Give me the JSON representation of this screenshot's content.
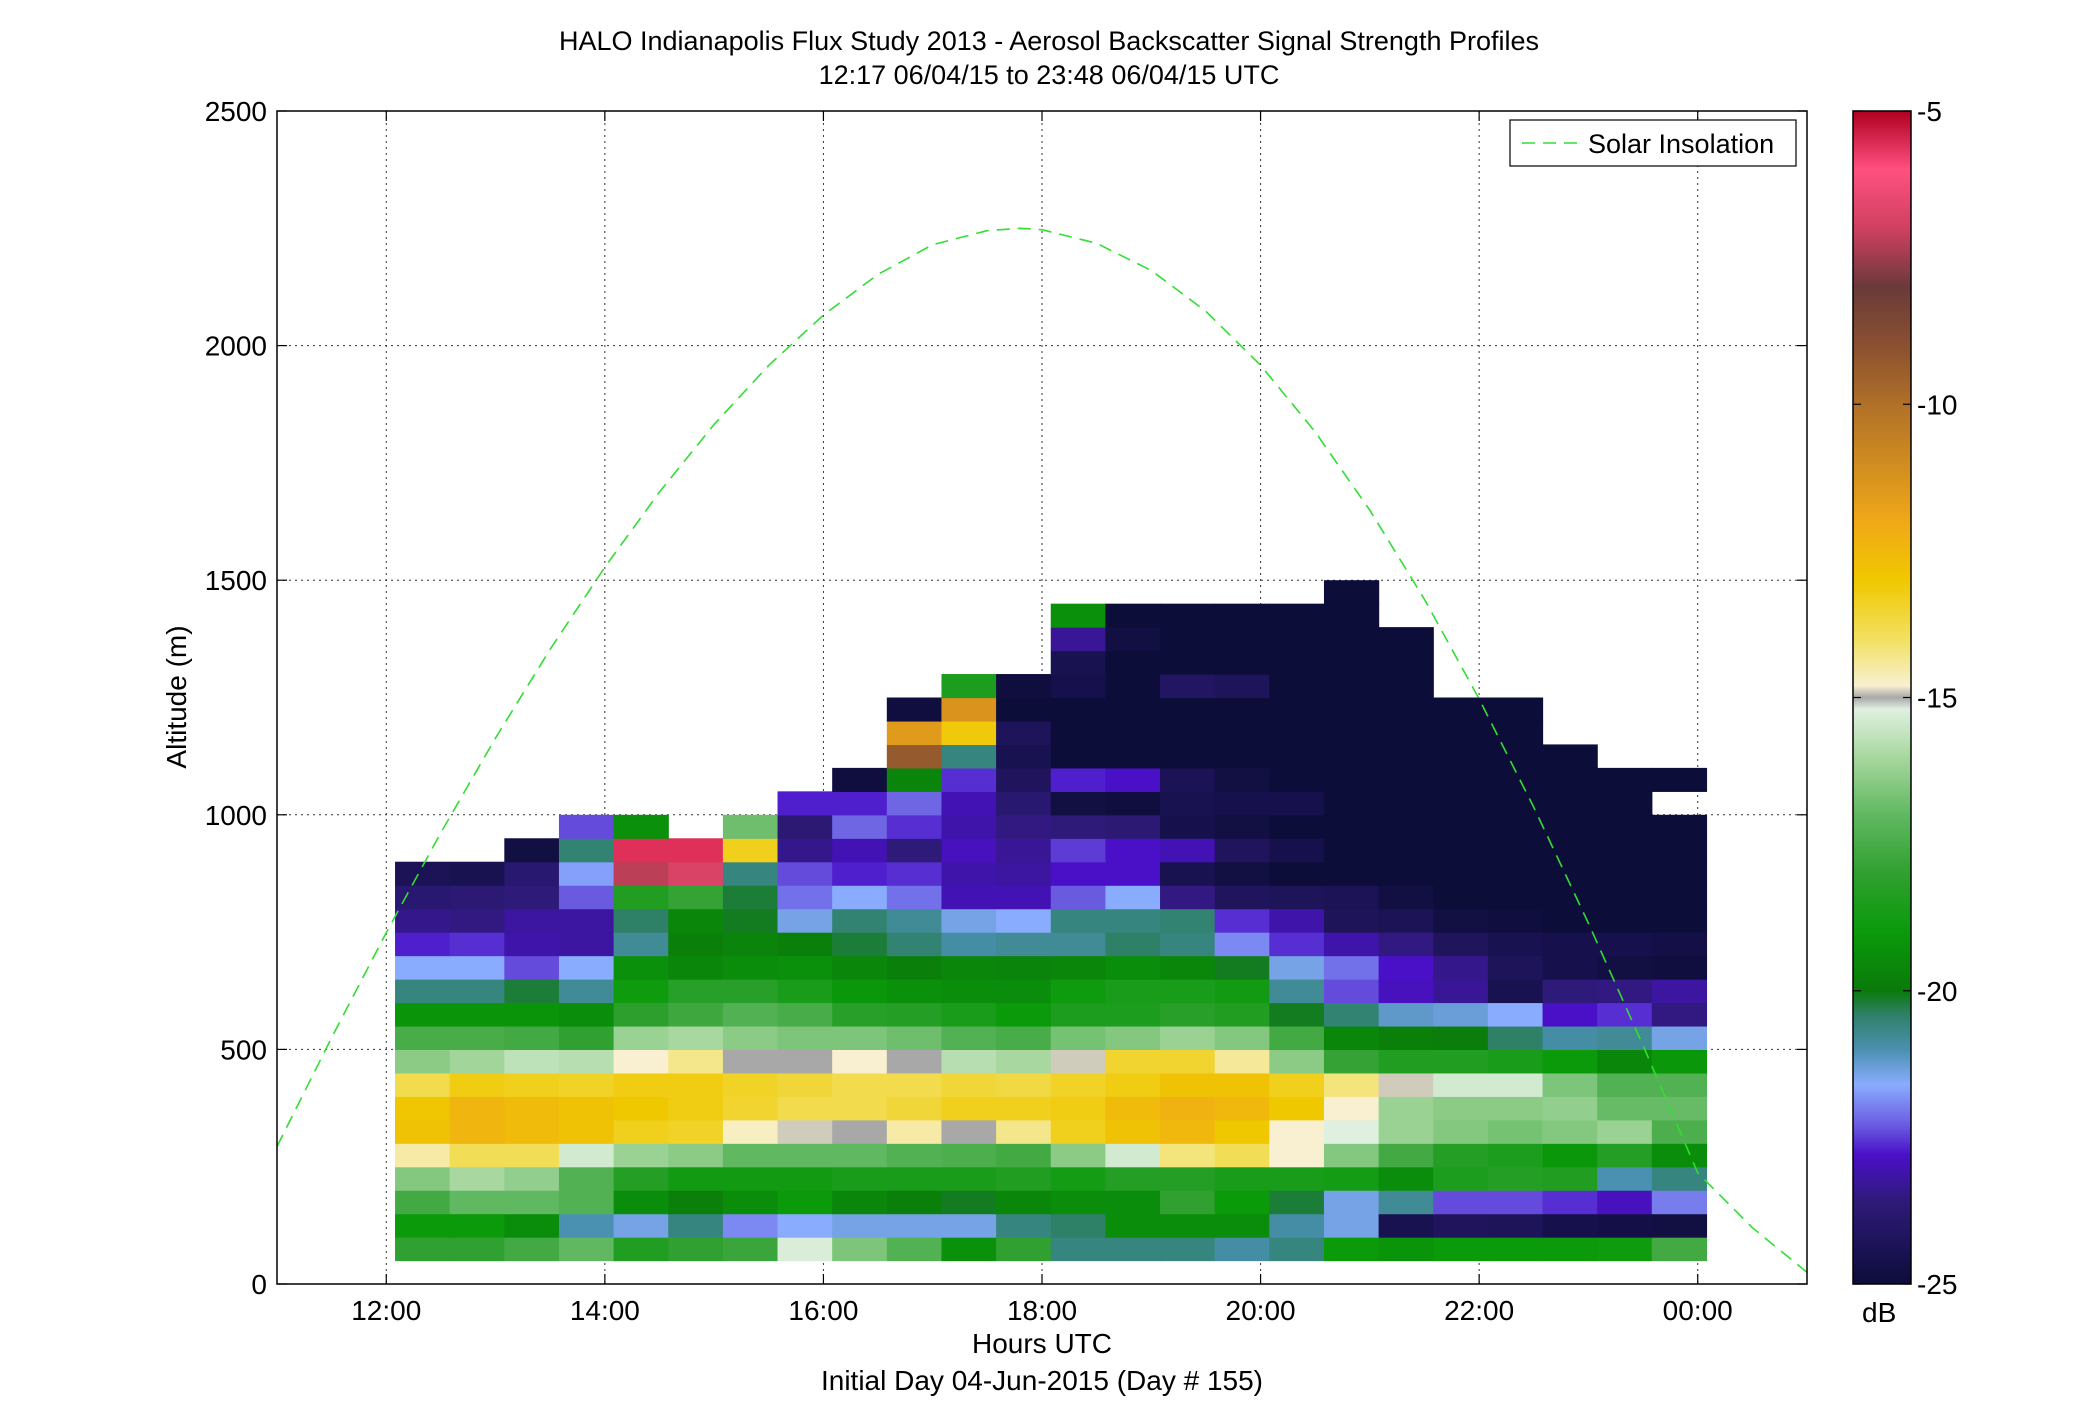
{
  "chart_data": {
    "type": "heatmap",
    "title": "HALO Indianapolis Flux Study 2013 - Aerosol Backscatter Signal Strength Profiles",
    "subtitle": "12:17 06/04/15 to 23:48 06/04/15  UTC",
    "xlabel": "Hours UTC",
    "xlabel2": "Initial Day 04-Jun-2015 (Day # 155)",
    "ylabel": "Altitude (m)",
    "xlim": [
      11.0,
      25.0
    ],
    "ylim": [
      0,
      2500
    ],
    "x_ticks": [
      12,
      14,
      16,
      18,
      20,
      22,
      24
    ],
    "x_tick_labels": [
      "12:00",
      "14:00",
      "16:00",
      "18:00",
      "20:00",
      "22:00",
      "00:00"
    ],
    "y_ticks": [
      0,
      500,
      1000,
      1500,
      2000,
      2500
    ],
    "y_tick_labels": [
      "0",
      "500",
      "1000",
      "1500",
      "2000",
      "2500"
    ],
    "grid": true,
    "legend": {
      "location": "top-right",
      "entries": [
        "Solar Insolation"
      ]
    },
    "colorbar": {
      "min": -25,
      "max": -5,
      "unit": "dB",
      "ticks": [
        -5,
        -10,
        -15,
        -20,
        -25
      ],
      "tick_labels": [
        "-5",
        "-10",
        "-15",
        "-20",
        "-25"
      ],
      "stops": [
        [
          -25,
          "#0d0d3a"
        ],
        [
          -23.6,
          "#2e1a78"
        ],
        [
          -22.8,
          "#4a10c8"
        ],
        [
          -22.3,
          "#6a5ae0"
        ],
        [
          -21.6,
          "#8aacff"
        ],
        [
          -21.0,
          "#4a90b0"
        ],
        [
          -20.4,
          "#2e8066"
        ],
        [
          -20.0,
          "#0a7a0a"
        ],
        [
          -19.0,
          "#0a9a0a"
        ],
        [
          -18.0,
          "#30a030"
        ],
        [
          -17.0,
          "#60b860"
        ],
        [
          -16.0,
          "#a8d8a0"
        ],
        [
          -15.2,
          "#e0f0e0"
        ],
        [
          -15.0,
          "#a8a8a8"
        ],
        [
          -14.8,
          "#f8f0d0"
        ],
        [
          -14.0,
          "#f2e060"
        ],
        [
          -13.0,
          "#f0c800"
        ],
        [
          -12.0,
          "#f0a818"
        ],
        [
          -10.0,
          "#b07028"
        ],
        [
          -9.0,
          "#8a5030"
        ],
        [
          -8.0,
          "#6a3a3a"
        ],
        [
          -7.0,
          "#d04060"
        ],
        [
          -6.0,
          "#ff5080"
        ],
        [
          -5.0,
          "#b00020"
        ]
      ]
    },
    "series": [
      {
        "name": "Solar Insolation",
        "kind": "line",
        "style": "dashed",
        "color": "#33dd33",
        "x": [
          11.0,
          11.5,
          12.0,
          12.5,
          13.0,
          13.5,
          14.0,
          14.5,
          15.0,
          15.5,
          16.0,
          16.5,
          17.0,
          17.5,
          17.8,
          18.0,
          18.5,
          19.0,
          19.5,
          20.0,
          20.5,
          21.0,
          21.5,
          22.0,
          22.5,
          23.0,
          23.5,
          24.0,
          24.5,
          25.0
        ],
        "y": [
          293,
          525,
          749,
          962,
          1164,
          1353,
          1528,
          1688,
          1832,
          1958,
          2065,
          2152,
          2215,
          2245,
          2250,
          2247,
          2218,
          2160,
          2073,
          1958,
          1816,
          1649,
          1459,
          1247,
          1016,
          769,
          508,
          237,
          120,
          25
        ]
      }
    ],
    "data_label": "Aerosol backscatter signal strength (dB)",
    "time_bins": [
      12.33,
      12.83,
      13.33,
      13.83,
      14.33,
      14.83,
      15.33,
      15.83,
      16.33,
      16.83,
      17.33,
      17.83,
      18.33,
      18.83,
      19.33,
      19.83,
      20.33,
      20.83,
      21.33,
      21.83,
      22.33,
      22.83,
      23.33,
      23.83
    ],
    "time_bin_width": 0.5,
    "alt_bin_start": 50,
    "alt_bin_height": 50,
    "values": [
      [
        -18,
        -18,
        -17.6,
        -17,
        -18.4,
        -18,
        -17.8,
        -15.3,
        -16.6,
        -17.3,
        -19.3,
        -18,
        -20.6,
        -20.6,
        -20.6,
        -20.9,
        -20.6,
        -19,
        -19.2,
        -19,
        -19,
        -19,
        -18.9,
        -17.6
      ],
      [
        -19,
        -19,
        -19.4,
        -21,
        -21.4,
        -20.6,
        -21.9,
        -21.6,
        -21.4,
        -21.4,
        -21.4,
        -20.6,
        -20.4,
        -19.4,
        -19.4,
        -19.4,
        -20.9,
        -21.4,
        -24.5,
        -24.2,
        -24.3,
        -24.6,
        -24.7,
        -24.8
      ],
      [
        -17.6,
        -17,
        -17,
        -17.3,
        -19.4,
        -19.8,
        -19.4,
        -19,
        -19.6,
        -19.8,
        -20.1,
        -19.6,
        -19.4,
        -19.4,
        -18,
        -19,
        -20.2,
        -21.4,
        -20.8,
        -22.4,
        -22.4,
        -22.6,
        -22.9,
        -22
      ],
      [
        -16.5,
        -16,
        -16.3,
        -17.3,
        -18.3,
        -18.8,
        -18.8,
        -18.8,
        -18.6,
        -18.6,
        -18.6,
        -18.4,
        -18.7,
        -18.3,
        -18.3,
        -18.6,
        -18.6,
        -18.7,
        -19.4,
        -18.5,
        -18.3,
        -18.4,
        -21,
        -20.6
      ],
      [
        -14.5,
        -13.9,
        -13.9,
        -15.4,
        -16.2,
        -16.4,
        -17,
        -17,
        -17,
        -17.3,
        -17.4,
        -17.6,
        -16.4,
        -15.4,
        -14.2,
        -13.9,
        -14.8,
        -16.5,
        -17.6,
        -18.3,
        -18.5,
        -19.1,
        -18.3,
        -19.4
      ],
      [
        -12.8,
        -12.4,
        -12.6,
        -12.8,
        -13.3,
        -13.4,
        -14.7,
        -14.9,
        -15,
        -14.5,
        -15,
        -14.3,
        -13.3,
        -12.8,
        -12.5,
        -13,
        -14.8,
        -15.2,
        -16.2,
        -16.5,
        -16.7,
        -16.5,
        -16.2,
        -17.4
      ],
      [
        -12.9,
        -12.4,
        -12.6,
        -12.8,
        -13,
        -13.2,
        -13.5,
        -13.8,
        -13.8,
        -13.6,
        -13.3,
        -13.3,
        -13.2,
        -12.6,
        -12.3,
        -12.5,
        -13,
        -14.8,
        -16.2,
        -16.4,
        -16.4,
        -16.3,
        -16.9,
        -16.9
      ],
      [
        -13.8,
        -13.2,
        -13.3,
        -13.4,
        -13.2,
        -13.2,
        -13.4,
        -13.6,
        -13.8,
        -13.8,
        -13.6,
        -13.7,
        -13.4,
        -13.2,
        -12.8,
        -12.8,
        -13.3,
        -14.2,
        -14.9,
        -15.4,
        -15.4,
        -16.6,
        -17.3,
        -17.3
      ],
      [
        -16.4,
        -16.1,
        -15.7,
        -15.8,
        -14.8,
        -14.3,
        -15,
        -15,
        -14.8,
        -15,
        -15.8,
        -16,
        -14.9,
        -13.5,
        -13.5,
        -14.4,
        -16.4,
        -17.9,
        -18.4,
        -18.4,
        -18.6,
        -19,
        -19.6,
        -19.1
      ],
      [
        -17.5,
        -17.5,
        -17.6,
        -18,
        -16.2,
        -16,
        -16.4,
        -16.6,
        -16.6,
        -16.8,
        -17.3,
        -17.5,
        -16.7,
        -16.5,
        -16.2,
        -16.5,
        -17.6,
        -19.6,
        -19.8,
        -19.9,
        -20.4,
        -20.9,
        -20.8,
        -21.4
      ],
      [
        -19.2,
        -19.2,
        -19.2,
        -19.4,
        -18.1,
        -17.7,
        -17.3,
        -17.5,
        -18.2,
        -18.3,
        -18.6,
        -19,
        -18.5,
        -18.5,
        -18.2,
        -18.4,
        -20.1,
        -20.5,
        -21.2,
        -21.3,
        -21.6,
        -22.8,
        -22.6,
        -23.5
      ],
      [
        -20.6,
        -20.6,
        -20.2,
        -20.8,
        -18.9,
        -18.2,
        -18.2,
        -18.6,
        -19.1,
        -19.3,
        -19.4,
        -19.4,
        -18.9,
        -18.6,
        -18.6,
        -18.8,
        -20.8,
        -22.4,
        -22.9,
        -23.3,
        -24.5,
        -23.6,
        -23.5,
        -23.2
      ],
      [
        -21.6,
        -21.6,
        -22.4,
        -21.6,
        -19.3,
        -19.6,
        -19.4,
        -19.3,
        -19.6,
        -19.8,
        -19.6,
        -19.7,
        -19.6,
        -19.4,
        -19.6,
        -20.1,
        -21.4,
        -22.1,
        -22.8,
        -23.4,
        -24.3,
        -24.6,
        -24.8,
        -24.9
      ],
      [
        -22.7,
        -22.6,
        -23.1,
        -23.2,
        -20.8,
        -19.8,
        -19.7,
        -19.8,
        -20.2,
        -20.5,
        -20.9,
        -20.8,
        -20.8,
        -20.4,
        -20.6,
        -21.9,
        -22.6,
        -23.1,
        -23.5,
        -24.2,
        -24.5,
        -24.6,
        -24.6,
        -24.7
      ],
      [
        -23.4,
        -23.5,
        -23.2,
        -23.2,
        -20.4,
        -19.6,
        -20.1,
        -21.4,
        -20.5,
        -20.8,
        -21.4,
        -21.6,
        -20.6,
        -20.6,
        -20.5,
        -22.6,
        -23.1,
        -24.3,
        -24.4,
        -24.8,
        -24.9,
        -25,
        -25,
        -25
      ],
      [
        -23.8,
        -23.7,
        -23.6,
        -22.3,
        -18.4,
        -17.9,
        -20.2,
        -22.1,
        -21.6,
        -22.1,
        -23,
        -23,
        -22.3,
        -21.6,
        -23.5,
        -24.2,
        -24.3,
        -24.4,
        -24.8,
        -25,
        -25,
        -25,
        -25,
        -25
      ],
      [
        -24.4,
        -24.5,
        -23.8,
        -21.7,
        -7.2,
        -6.8,
        -20.6,
        -22.4,
        -22.7,
        -22.6,
        -23.1,
        -23.2,
        -22.8,
        -22.8,
        -24.5,
        -24.8,
        -25,
        -25,
        -25,
        -25,
        -25,
        -25,
        -25,
        -25
      ],
      [
        null,
        null,
        -24.8,
        -20.5,
        -5.6,
        -5.6,
        -13.3,
        -23.4,
        -23,
        -23.6,
        -22.9,
        -23.3,
        -22.5,
        -22.8,
        -23,
        -24.2,
        -24.6,
        -25,
        -25,
        -25,
        -25,
        -25,
        -25,
        -25
      ],
      [
        null,
        null,
        null,
        -22.4,
        -19.3,
        null,
        -16.8,
        -23.7,
        -22.2,
        -22.6,
        -23.1,
        -23.5,
        -23.6,
        -23.7,
        -24.6,
        -24.8,
        -25,
        -25,
        -25,
        -25,
        -25,
        -25,
        -25,
        -25
      ],
      [
        null,
        null,
        null,
        null,
        null,
        null,
        null,
        -22.7,
        -22.7,
        -22.2,
        -23,
        -23.8,
        -24.8,
        -24.9,
        -24.5,
        -24.6,
        -24.6,
        -25,
        -25,
        -25,
        -25,
        -25,
        -25,
        null
      ],
      [
        null,
        null,
        null,
        null,
        null,
        null,
        null,
        null,
        -24.9,
        -19.7,
        -22.6,
        -24.2,
        -22.7,
        -22.8,
        -24.4,
        -24.8,
        -25,
        -25,
        -25,
        -25,
        -25,
        -25,
        -25,
        -25
      ],
      [
        null,
        null,
        null,
        null,
        null,
        null,
        null,
        null,
        null,
        -9.3,
        -20.6,
        -24.5,
        -25,
        -25,
        -25,
        -25,
        -25,
        -25,
        -25,
        -25,
        -25,
        -25,
        null,
        null
      ],
      [
        null,
        null,
        null,
        null,
        null,
        null,
        null,
        null,
        null,
        -11.5,
        -13.1,
        -24.3,
        -25,
        -25,
        -25,
        -25,
        -25,
        -25,
        -25,
        -25,
        -25,
        null,
        null,
        null
      ],
      [
        null,
        null,
        null,
        null,
        null,
        null,
        null,
        null,
        null,
        -24.9,
        -11.3,
        -25,
        -25,
        -25,
        -25,
        -25,
        -25,
        -25,
        -25,
        -25,
        -25,
        null,
        null,
        null
      ],
      [
        null,
        null,
        null,
        null,
        null,
        null,
        null,
        null,
        null,
        null,
        -18.5,
        -24.9,
        -24.6,
        -25,
        -24.1,
        -24.3,
        -25,
        -25,
        -25,
        null,
        null,
        null,
        null,
        null
      ],
      [
        null,
        null,
        null,
        null,
        null,
        null,
        null,
        null,
        null,
        null,
        null,
        null,
        -24.5,
        -25,
        -25,
        -25,
        -25,
        -25,
        -25,
        null,
        null,
        null,
        null,
        null
      ],
      [
        null,
        null,
        null,
        null,
        null,
        null,
        null,
        null,
        null,
        null,
        null,
        null,
        -23.3,
        -24.8,
        -25,
        -25,
        -25,
        -25,
        -25,
        null,
        null,
        null,
        null,
        null
      ],
      [
        null,
        null,
        null,
        null,
        null,
        null,
        null,
        null,
        null,
        null,
        null,
        null,
        -19.3,
        -25,
        -25,
        -25,
        -25,
        -25,
        null,
        null,
        null,
        null,
        null,
        null
      ],
      [
        null,
        null,
        null,
        null,
        null,
        null,
        null,
        null,
        null,
        null,
        null,
        null,
        null,
        null,
        null,
        null,
        null,
        -25,
        null,
        null,
        null,
        null,
        null,
        null
      ]
    ]
  }
}
